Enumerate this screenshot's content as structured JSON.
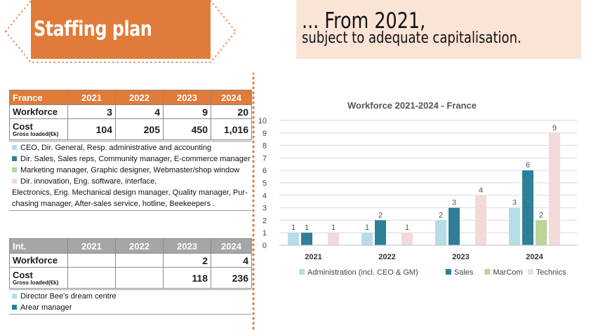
{
  "header": {
    "title": "Staffing plan",
    "subtitle_line1": "... From 2021,",
    "subtitle_line2": "subject to adequate capitalisation."
  },
  "colors": {
    "accent_orange": "#e07b39",
    "grey_header": "#a6a6a6",
    "subtitle_bg": "#fbe3d6",
    "administration": "#b4dde9",
    "sales": "#2e7f97",
    "marcom": "#b9d59c",
    "technics": "#f3dada"
  },
  "france_table": {
    "header": [
      "France",
      "2021",
      "2022",
      "2023",
      "2024"
    ],
    "workforce": {
      "label": "Workforce",
      "values": [
        "3",
        "4",
        "9",
        "20"
      ]
    },
    "cost": {
      "label": "Cost",
      "sublabel": "Gross loaded(€k)",
      "values": [
        "104",
        "205",
        "450",
        "1,016"
      ]
    }
  },
  "france_roles": [
    {
      "swatch": "administration",
      "text": "CEO, Dir. General, Resp. administrative and accounting"
    },
    {
      "swatch": "sales",
      "text": "Dir. Sales, Sales reps, Community manager,  E-commerce manager"
    },
    {
      "swatch": "marcom",
      "text": "Marketing manager, Graphic designer, Webmaster/shop window"
    },
    {
      "swatch": "technics",
      "text": "Dir. innovation, Eng. software, interface,"
    },
    {
      "swatch": "",
      "text": "Electronics, Eng. Mechanical design manager, Quality manager, Pur-"
    },
    {
      "swatch": "",
      "text": "chasing manager, After-sales service, hotline, Beekeepers ."
    }
  ],
  "int_table": {
    "header": [
      "Int.",
      "2021",
      "2022",
      "2023",
      "2024"
    ],
    "workforce": {
      "label": "Workforce",
      "values": [
        "",
        "",
        "2",
        "4"
      ]
    },
    "cost": {
      "label": "Cost",
      "sublabel": "Gross loaded(€k)",
      "values": [
        "",
        "",
        "118",
        "236"
      ]
    }
  },
  "int_roles": [
    {
      "swatch": "administration",
      "text": "Director Bee's dream centre"
    },
    {
      "swatch": "sales",
      "text": "Arear manager"
    }
  ],
  "chart_data": {
    "type": "bar",
    "title": "Workforce 2021-2024 - France",
    "categories": [
      "2021",
      "2022",
      "2023",
      "2024"
    ],
    "ylim": [
      0,
      10
    ],
    "yticks": [
      0,
      1,
      2,
      3,
      4,
      5,
      6,
      7,
      8,
      9,
      10
    ],
    "grid": true,
    "legend": "bottom",
    "series": [
      {
        "name": "Administration (incl. CEO & GM)",
        "color": "#b4dde9",
        "values": [
          1,
          1,
          2,
          3
        ]
      },
      {
        "name": "Sales",
        "color": "#2e7f97",
        "values": [
          1,
          2,
          3,
          6
        ]
      },
      {
        "name": "MarCom",
        "color": "#b9d59c",
        "values": [
          null,
          null,
          null,
          2
        ]
      },
      {
        "name": "Technics",
        "color": "#f3dada",
        "values": [
          1,
          1,
          4,
          9
        ]
      }
    ]
  }
}
